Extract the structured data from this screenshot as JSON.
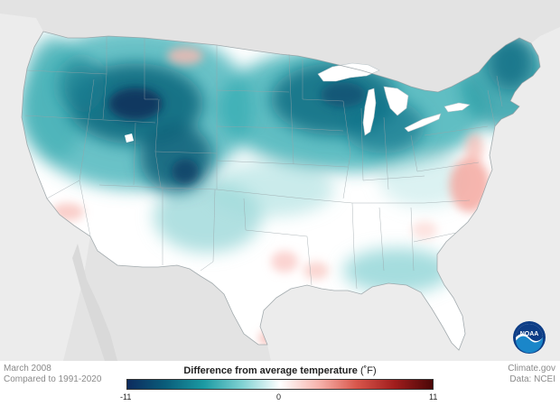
{
  "map": {
    "land_color": "#ffffff",
    "background_color": "#ececec",
    "water_color": "#ffffff",
    "border_color": "#9aa4a8"
  },
  "footer": {
    "date_label": "March 2008",
    "baseline_label": "Compared to 1991-2020",
    "credit_source": "Climate.gov",
    "credit_data": "Data: NCEI"
  },
  "legend": {
    "title": "Difference from average temperature",
    "unit": "(˚F)",
    "min_label": "-11",
    "mid_label": "0",
    "max_label": "11",
    "min": -11,
    "max": 11,
    "color_stops": [
      "#0d2b5e",
      "#0a5d7a",
      "#1b9aa2",
      "#7fd1d2",
      "#ffffff",
      "#f7b5ae",
      "#d9574c",
      "#a11d1d",
      "#4a0707"
    ]
  },
  "logo": {
    "icon_name": "noaa-logo",
    "text": "NOAA"
  }
}
